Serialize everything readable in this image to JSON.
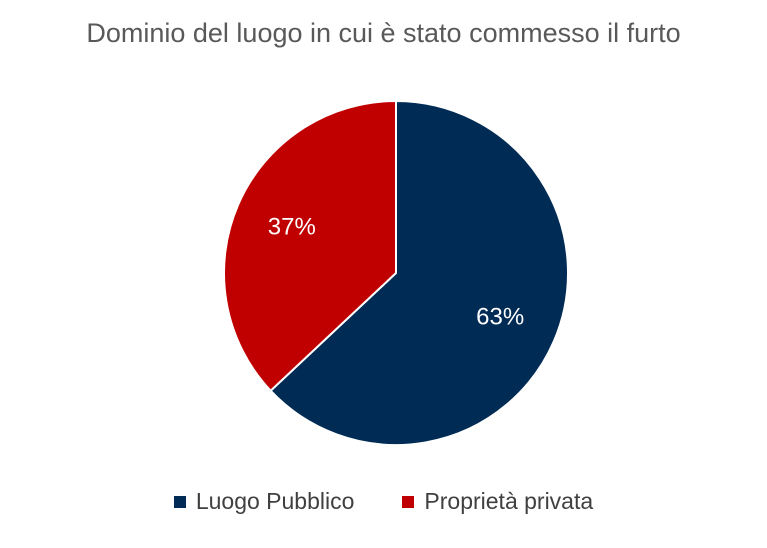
{
  "chart_data": {
    "type": "pie",
    "title": "Dominio del luogo in cui è stato commesso il furto",
    "slices": [
      {
        "name": "Luogo Pubblico",
        "value": 63,
        "label": "63%",
        "color": "#002b54"
      },
      {
        "name": "Proprietà privata",
        "value": 37,
        "label": "37%",
        "color": "#c00000"
      }
    ],
    "legend_position": "bottom"
  }
}
